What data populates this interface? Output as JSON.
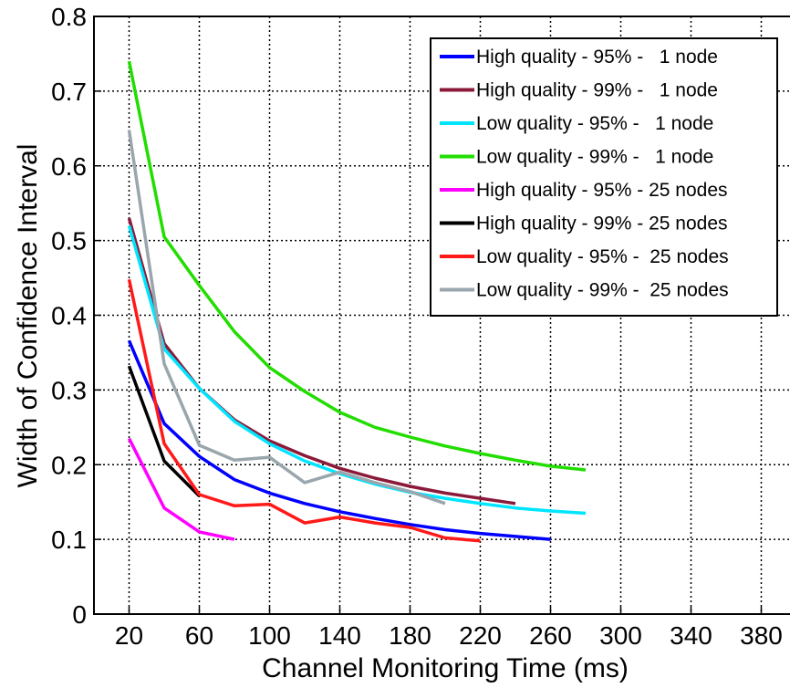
{
  "chart_data": {
    "type": "line",
    "xlabel": "Channel Monitoring Time (ms)",
    "ylabel": "Width of Confidence Interval",
    "xlim": [
      0,
      400
    ],
    "ylim": [
      0,
      0.8
    ],
    "x_ticks": [
      20,
      60,
      100,
      140,
      180,
      220,
      260,
      300,
      340,
      380
    ],
    "y_ticks": [
      0,
      0.1,
      0.2,
      0.3,
      0.4,
      0.5,
      0.6,
      0.7,
      0.8
    ],
    "y_tick_labels": [
      "0",
      "0.1",
      "0.2",
      "0.3",
      "0.4",
      "0.5",
      "0.6",
      "0.7",
      "0.8"
    ],
    "grid": true,
    "legend_position": "top-right",
    "series": [
      {
        "name": "High quality - 95% -   1 node",
        "color": "#0000ff",
        "x": [
          20,
          40,
          60,
          80,
          100,
          120,
          140,
          160,
          180,
          200,
          220,
          240,
          260
        ],
        "y": [
          0.366,
          0.255,
          0.211,
          0.18,
          0.162,
          0.148,
          0.137,
          0.128,
          0.12,
          0.113,
          0.108,
          0.104,
          0.1
        ]
      },
      {
        "name": "High quality - 99% -   1 node",
        "color": "#8b1a3a",
        "x": [
          20,
          40,
          60,
          80,
          100,
          120,
          140,
          160,
          180,
          200,
          220,
          240
        ],
        "y": [
          0.53,
          0.362,
          0.302,
          0.26,
          0.232,
          0.212,
          0.195,
          0.182,
          0.171,
          0.162,
          0.155,
          0.148
        ]
      },
      {
        "name": "Low quality - 95% -   1 node",
        "color": "#00e5ff",
        "x": [
          20,
          40,
          60,
          80,
          100,
          120,
          140,
          160,
          180,
          200,
          220,
          240,
          260,
          280
        ],
        "y": [
          0.52,
          0.355,
          0.302,
          0.258,
          0.228,
          0.205,
          0.188,
          0.174,
          0.163,
          0.155,
          0.148,
          0.142,
          0.138,
          0.135
        ]
      },
      {
        "name": "Low quality - 99% -   1 node",
        "color": "#22dd00",
        "x": [
          20,
          40,
          60,
          80,
          100,
          120,
          140,
          160,
          180,
          200,
          220,
          240,
          260,
          280
        ],
        "y": [
          0.74,
          0.505,
          0.44,
          0.378,
          0.33,
          0.298,
          0.27,
          0.25,
          0.237,
          0.225,
          0.215,
          0.206,
          0.198,
          0.193
        ]
      },
      {
        "name": "High quality - 95% - 25 nodes",
        "color": "#ff00ff",
        "x": [
          20,
          40,
          60,
          80
        ],
        "y": [
          0.235,
          0.142,
          0.11,
          0.1
        ]
      },
      {
        "name": "High quality - 99% - 25 nodes",
        "color": "#000000",
        "x": [
          20,
          40,
          60
        ],
        "y": [
          0.332,
          0.205,
          0.158
        ]
      },
      {
        "name": "Low quality - 95% -  25 nodes",
        "color": "#ff1a1a",
        "x": [
          20,
          40,
          60,
          80,
          100,
          120,
          140,
          160,
          180,
          200,
          220
        ],
        "y": [
          0.448,
          0.228,
          0.16,
          0.145,
          0.147,
          0.122,
          0.13,
          0.122,
          0.116,
          0.102,
          0.098
        ]
      },
      {
        "name": "Low quality - 99% -  25 nodes",
        "color": "#99a6ad",
        "x": [
          20,
          40,
          60,
          80,
          100,
          120,
          140,
          160,
          180,
          200
        ],
        "y": [
          0.648,
          0.335,
          0.226,
          0.206,
          0.21,
          0.176,
          0.19,
          0.176,
          0.164,
          0.148
        ]
      }
    ]
  }
}
